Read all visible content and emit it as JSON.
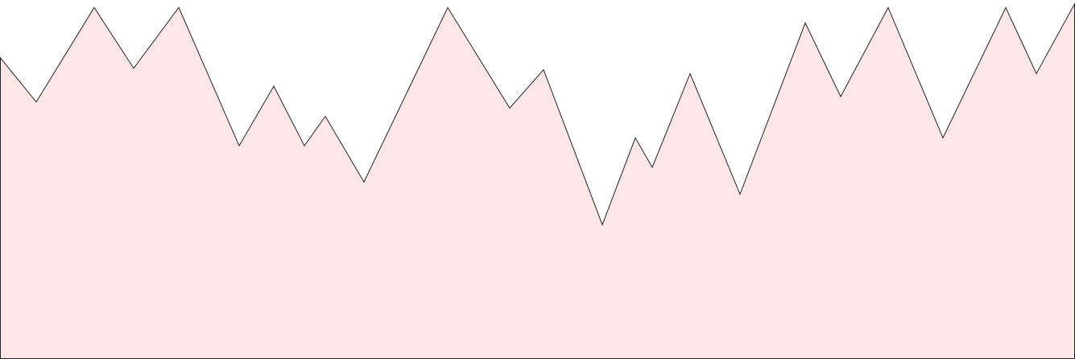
{
  "chart_data": {
    "type": "area",
    "title": "",
    "xlabel": "",
    "ylabel": "",
    "grid": false,
    "legend": "none",
    "fill_color": "#fde6e8",
    "line_color": "#222222",
    "x": [
      0,
      45,
      117,
      166,
      222,
      297,
      340,
      378,
      404,
      452,
      556,
      633,
      675,
      748,
      789,
      810,
      857,
      919,
      1000,
      1044,
      1103,
      1171,
      1249,
      1287,
      1335
    ],
    "ylim": [
      0,
      100
    ],
    "xlim": [
      0,
      1335
    ],
    "series": [
      {
        "values": [
          84.0,
          71.6,
          97.9,
          81.0,
          97.9,
          59.4,
          76.0,
          59.4,
          67.6,
          49.3,
          97.9,
          69.9,
          80.6,
          37.4,
          61.6,
          53.4,
          79.5,
          45.9,
          93.6,
          73.1,
          97.9,
          61.6,
          97.9,
          79.5,
          99.1
        ]
      }
    ]
  }
}
